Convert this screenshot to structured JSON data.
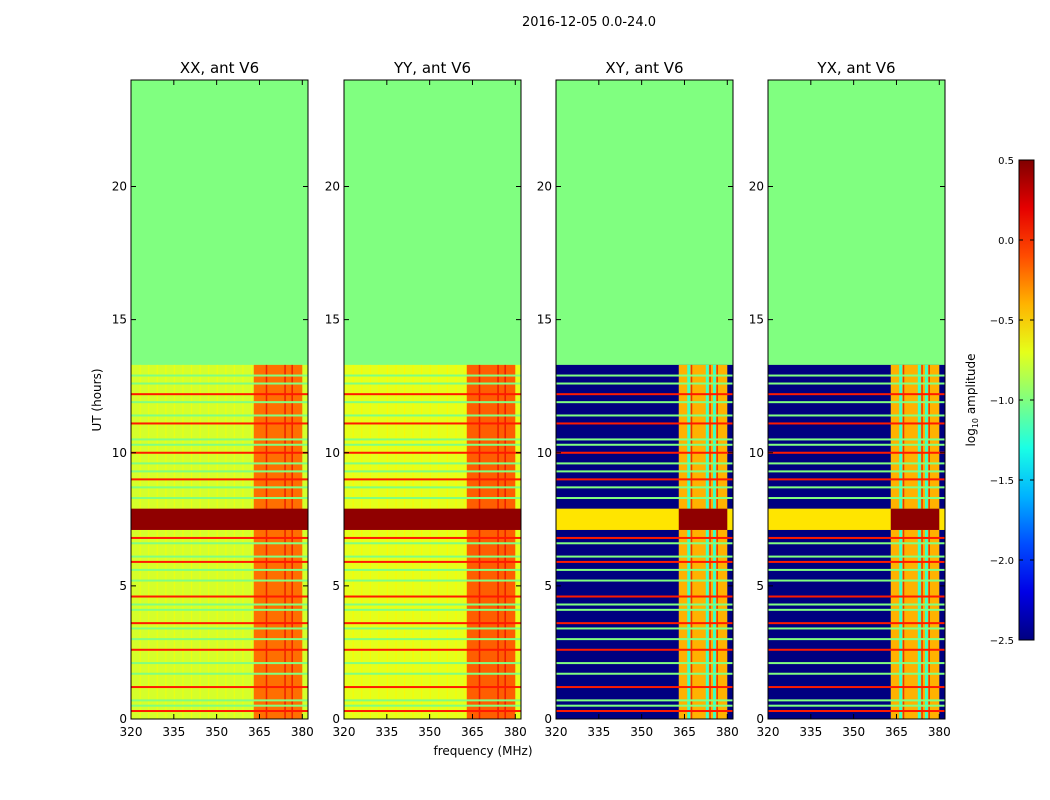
{
  "chart_data": {
    "type": "heatmap",
    "suptitle": "2016-12-05 0.0-24.0",
    "xlabel": "frequency (MHz)",
    "ylabel": "UT (hours)",
    "xlim": [
      320,
      382
    ],
    "ylim": [
      0,
      24
    ],
    "xticks": [
      320,
      335,
      350,
      365,
      380
    ],
    "yticks": [
      0,
      5,
      10,
      15,
      20
    ],
    "data_end_hours": 13.3,
    "strong_band_mhz": [
      363,
      380
    ],
    "strong_band_lines_mhz": [
      366.5,
      373,
      375.5
    ],
    "bright_band_hours": [
      7.1,
      7.9
    ],
    "flag_lines_hours": [
      0.3,
      0.5,
      0.7,
      1.2,
      1.7,
      2.1,
      2.6,
      3.0,
      3.4,
      3.6,
      4.1,
      4.3,
      4.6,
      5.2,
      5.6,
      5.9,
      6.1,
      6.6,
      6.8,
      8.3,
      8.7,
      9.0,
      9.3,
      9.6,
      10.0,
      10.3,
      10.5,
      11.1,
      11.4,
      11.9,
      12.2,
      12.6,
      12.9
    ],
    "panels": [
      {
        "title": "XX, ant V6",
        "kind": "parallel",
        "base_log_amplitude": -0.75,
        "band_log_amplitude": -0.2
      },
      {
        "title": "YY, ant V6",
        "kind": "parallel",
        "base_log_amplitude": -0.7,
        "band_log_amplitude": -0.15
      },
      {
        "title": "XY, ant V6",
        "kind": "cross",
        "base_log_amplitude": -2.5,
        "band_log_amplitude": -0.4
      },
      {
        "title": "YX, ant V6",
        "kind": "cross",
        "base_log_amplitude": -2.5,
        "band_log_amplitude": -0.4
      }
    ],
    "colorbar": {
      "label_prefix": "log",
      "label_sub": "10",
      "label_suffix": " amplitude",
      "range": [
        -2.5,
        0.5
      ],
      "ticks": [
        0.5,
        0.0,
        -0.5,
        -1.0,
        -1.5,
        -2.0,
        -2.5
      ],
      "tick_labels": [
        "0.5",
        "0.0",
        "−0.5",
        "−1.0",
        "−1.5",
        "−2.0",
        "−2.5"
      ],
      "colormap": "jet"
    }
  }
}
